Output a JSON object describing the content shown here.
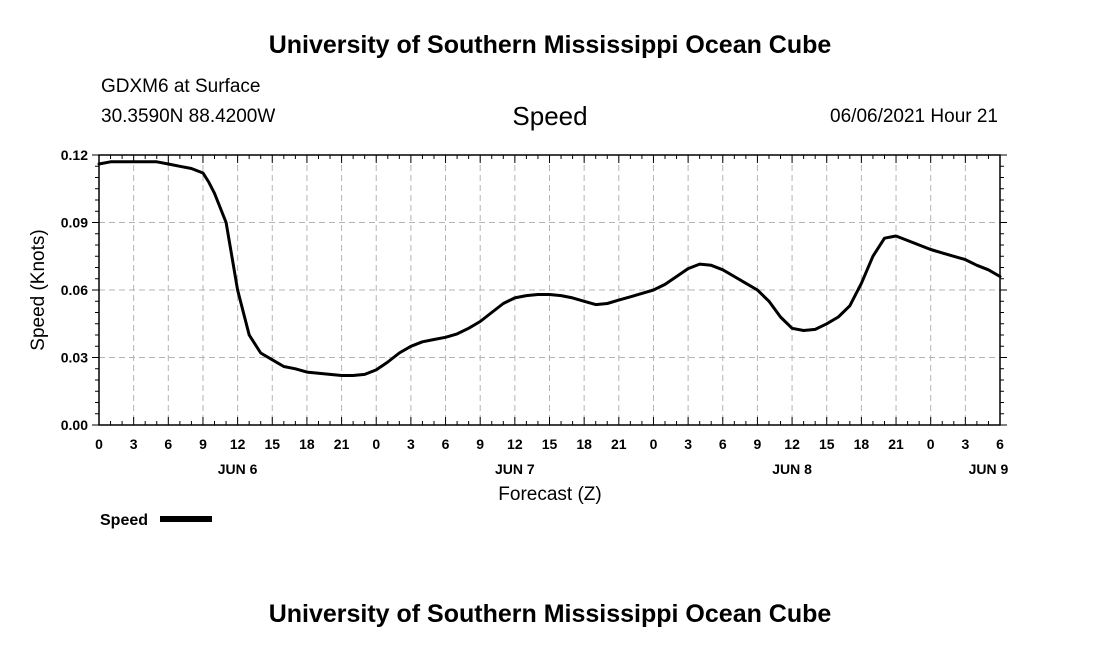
{
  "header": {
    "title_top": "University of Southern Mississippi Ocean Cube",
    "station": "GDXM6 at Surface",
    "coords": "30.3590N  88.4200W",
    "variable": "Speed",
    "timestamp": "06/06/2021 Hour 21"
  },
  "footer": {
    "title_bottom": "University of Southern Mississippi Ocean Cube"
  },
  "colors": {
    "line": "#000000",
    "grid": "#b4b4b4"
  },
  "chart_data": {
    "type": "line",
    "title": "Speed",
    "xlabel": "Forecast (Z)",
    "ylabel": "Speed (Knots)",
    "xlim": [
      0,
      78
    ],
    "ylim": [
      0,
      0.12
    ],
    "grid": true,
    "yticks": [
      0.0,
      0.03,
      0.06,
      0.09,
      0.12
    ],
    "ytick_labels": [
      "0.00",
      "0.03",
      "0.06",
      "0.09",
      "0.12"
    ],
    "xticks": [
      0,
      3,
      6,
      9,
      12,
      15,
      18,
      21,
      24,
      27,
      30,
      33,
      36,
      39,
      42,
      45,
      48,
      51,
      54,
      57,
      60,
      63,
      66,
      69,
      72,
      75,
      78
    ],
    "xtick_labels": [
      "0",
      "3",
      "6",
      "9",
      "12",
      "15",
      "18",
      "21",
      "0",
      "3",
      "6",
      "9",
      "12",
      "15",
      "18",
      "21",
      "0",
      "3",
      "6",
      "9",
      "12",
      "15",
      "18",
      "21",
      "0",
      "3",
      "6"
    ],
    "date_labels": [
      {
        "label": "JUN 6",
        "x": 12
      },
      {
        "label": "JUN 7",
        "x": 36
      },
      {
        "label": "JUN 8",
        "x": 60
      },
      {
        "label": "JUN 9",
        "x": 77
      }
    ],
    "legend": {
      "label": "Speed",
      "position": "bottom-left"
    },
    "series": [
      {
        "name": "Speed",
        "x": [
          0,
          1,
          3,
          5,
          6,
          7,
          8,
          9,
          9.5,
          10,
          11,
          12,
          13,
          14,
          15,
          16,
          17,
          18,
          19,
          20,
          21,
          22,
          23,
          24,
          25,
          26,
          27,
          28,
          29,
          30,
          31,
          32,
          33,
          34,
          35,
          36,
          37,
          38,
          39,
          40,
          41,
          42,
          43,
          44,
          45,
          46,
          47,
          48,
          49,
          50,
          51,
          52,
          53,
          54,
          55,
          56,
          57,
          58,
          59,
          60,
          61,
          62,
          63,
          64,
          65,
          66,
          67,
          68,
          69,
          70,
          71,
          72,
          73,
          74,
          75,
          76,
          77,
          78
        ],
        "values": [
          0.116,
          0.117,
          0.117,
          0.117,
          0.116,
          0.115,
          0.114,
          0.112,
          0.108,
          0.103,
          0.09,
          0.06,
          0.04,
          0.032,
          0.029,
          0.026,
          0.025,
          0.0235,
          0.023,
          0.0225,
          0.022,
          0.022,
          0.0225,
          0.0245,
          0.028,
          0.032,
          0.035,
          0.037,
          0.038,
          0.039,
          0.0405,
          0.043,
          0.046,
          0.05,
          0.054,
          0.0565,
          0.0575,
          0.058,
          0.058,
          0.0575,
          0.0565,
          0.055,
          0.0535,
          0.054,
          0.0555,
          0.057,
          0.0585,
          0.06,
          0.0625,
          0.066,
          0.0695,
          0.0715,
          0.071,
          0.069,
          0.066,
          0.063,
          0.06,
          0.055,
          0.048,
          0.043,
          0.042,
          0.0425,
          0.045,
          0.048,
          0.053,
          0.063,
          0.075,
          0.083,
          0.084,
          0.082,
          0.08,
          0.078,
          0.0765,
          0.075,
          0.0735,
          0.071,
          0.069,
          0.066
        ]
      }
    ]
  }
}
